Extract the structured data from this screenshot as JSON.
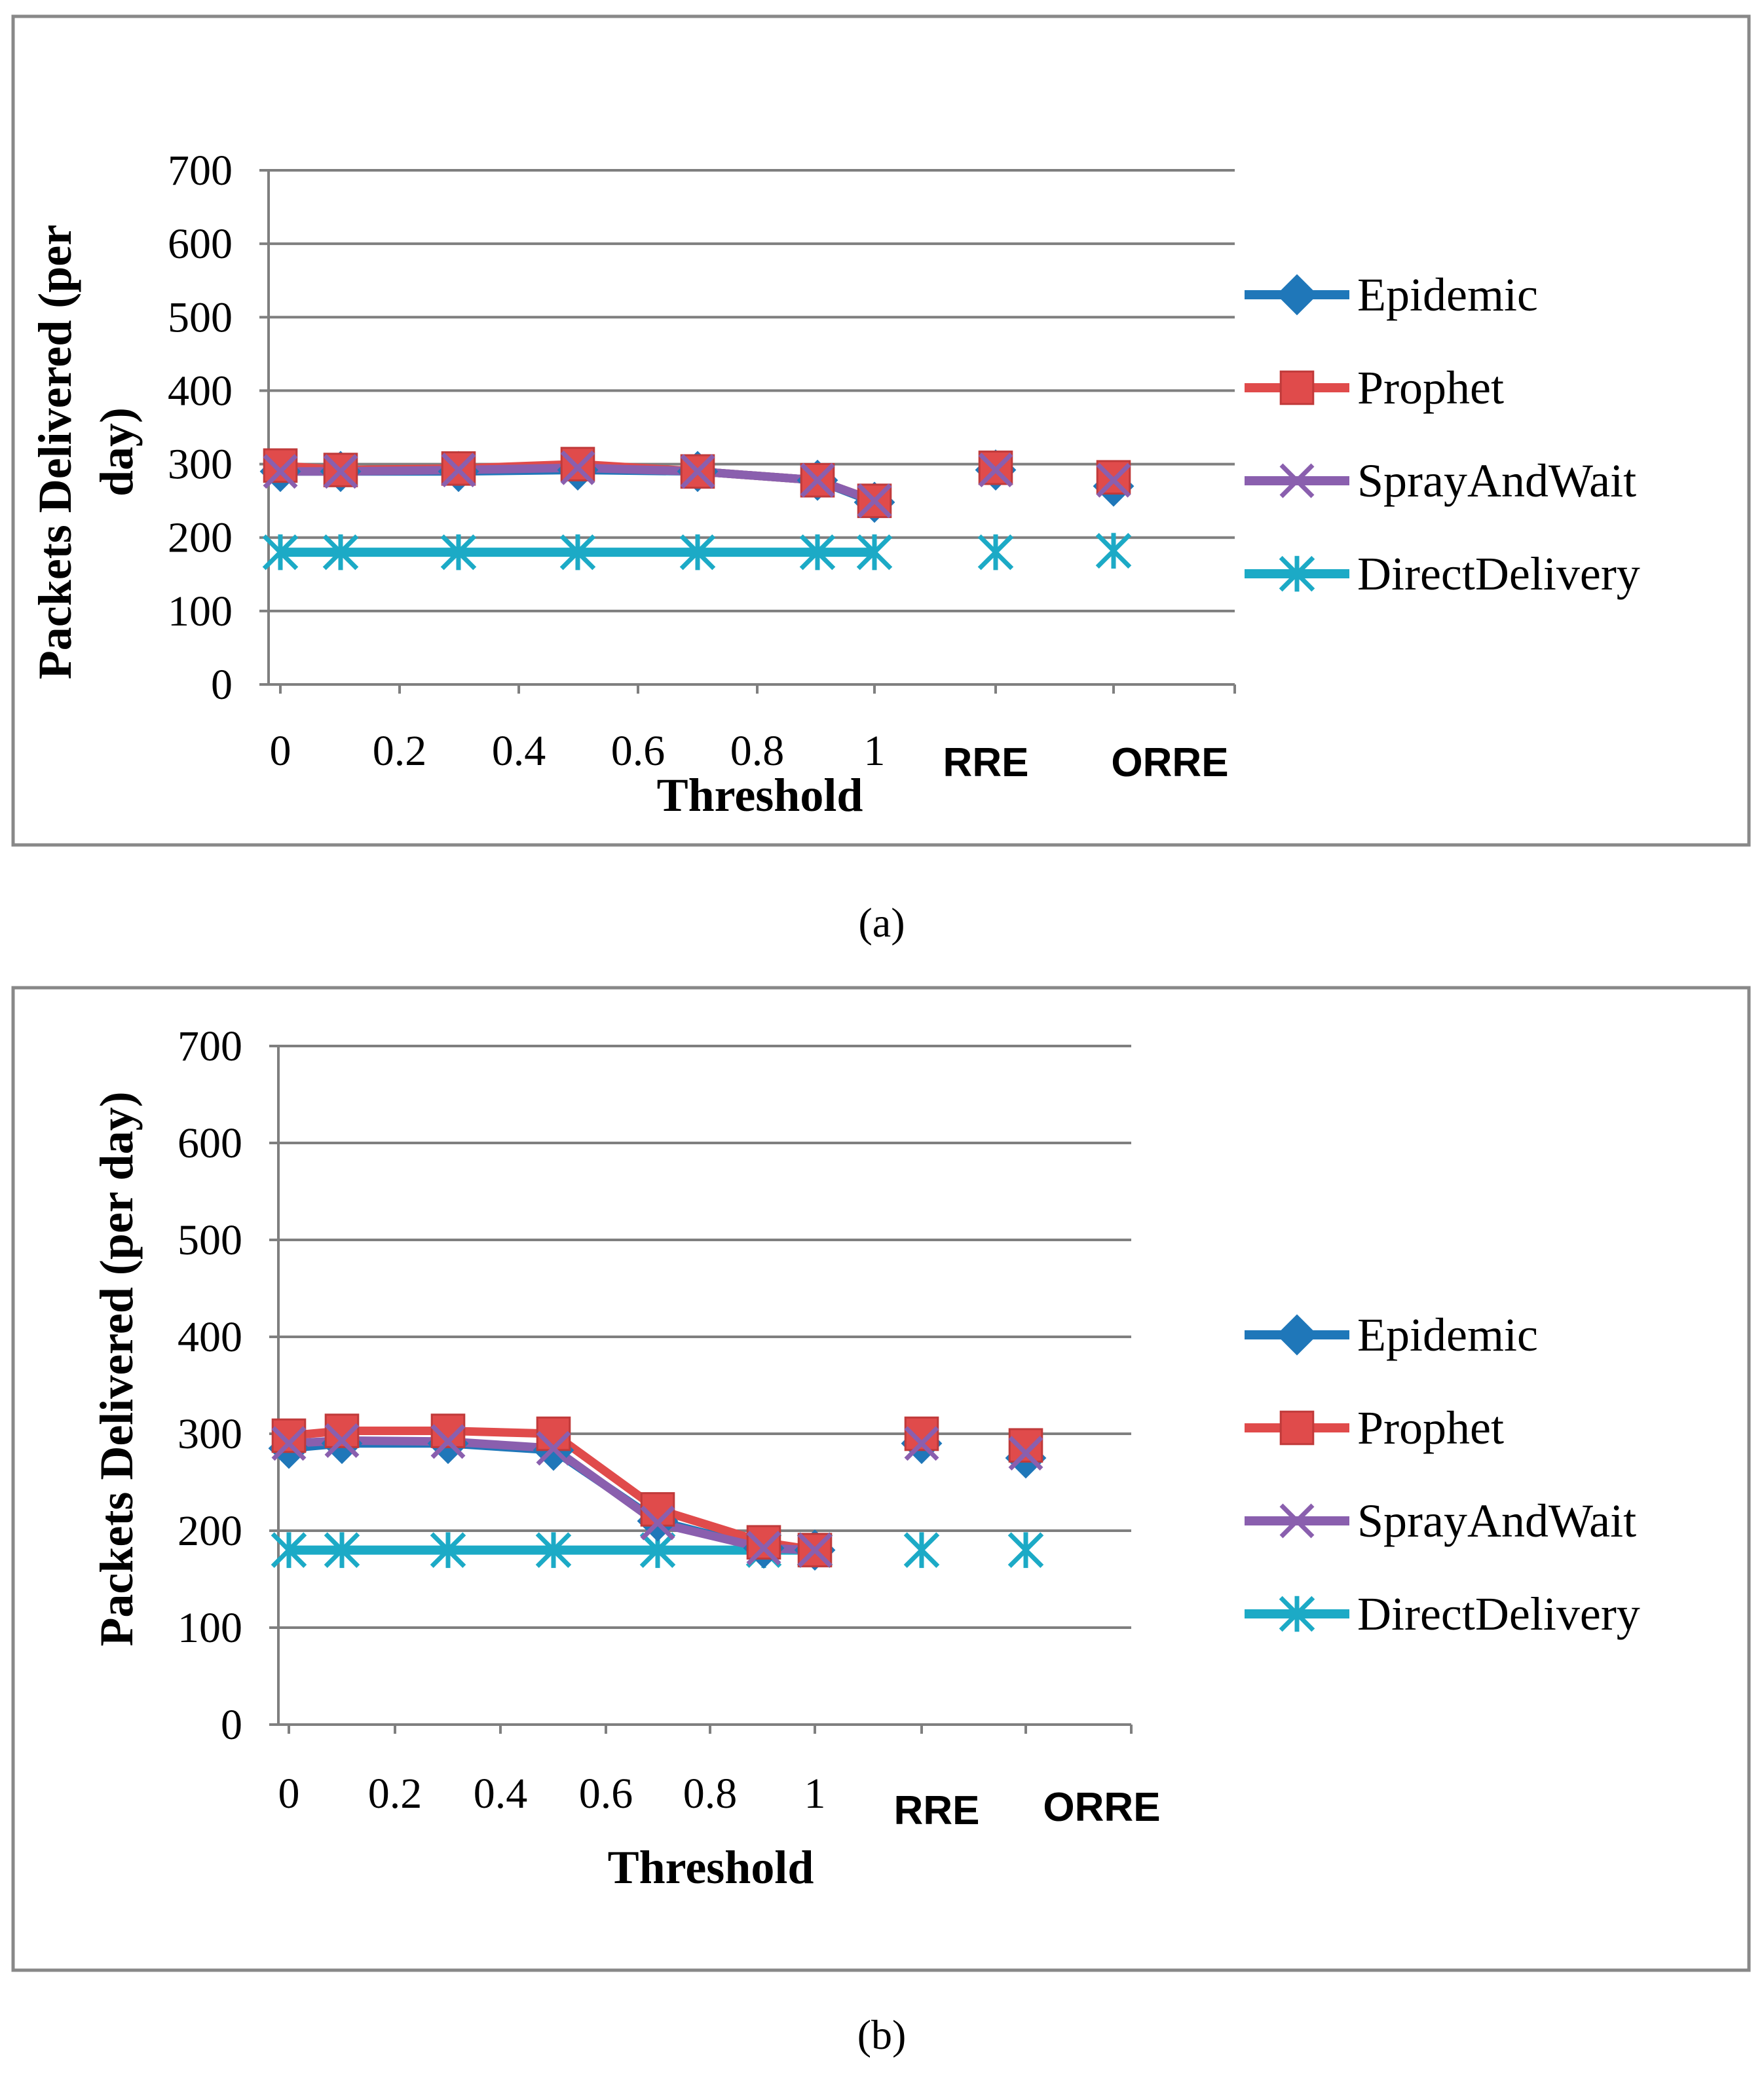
{
  "chart_data": [
    {
      "type": "line",
      "panel": "a",
      "caption": "(a)",
      "xlabel": "Threshold",
      "ylabel_lines": [
        "Packets Delivered (per",
        "day)"
      ],
      "ylim": [
        0,
        700
      ],
      "y_ticks": [
        "0",
        "100",
        "200",
        "300",
        "400",
        "500",
        "600",
        "700"
      ],
      "categories": [
        "0",
        "0.1",
        "0.3",
        "0.5",
        "0.7",
        "0.9",
        "1",
        "RRE",
        "ORRE"
      ],
      "x_tick_labels": [
        "0",
        "0.2",
        "0.4",
        "0.6",
        "0.8",
        "1",
        "RRE",
        "ORRE"
      ],
      "grid": true,
      "legend_position": "right",
      "series": [
        {
          "name": "Epidemic",
          "color": "#1F77B9",
          "marker": "diamond",
          "values": [
            290,
            290,
            290,
            292,
            290,
            278,
            248,
            292,
            270
          ]
        },
        {
          "name": "Prophet",
          "color": "#E04B4B",
          "marker": "square",
          "values": [
            298,
            292,
            294,
            300,
            290,
            278,
            250,
            295,
            282
          ]
        },
        {
          "name": "SprayAndWait",
          "color": "#8A5FAE",
          "marker": "x",
          "values": [
            290,
            290,
            292,
            295,
            290,
            278,
            250,
            292,
            278
          ]
        },
        {
          "name": "DirectDelivery",
          "color": "#1CAAC6",
          "marker": "asterisk",
          "values": [
            180,
            180,
            180,
            180,
            180,
            180,
            180,
            180,
            182
          ]
        }
      ]
    },
    {
      "type": "line",
      "panel": "b",
      "caption": "(b)",
      "xlabel": "Threshold",
      "ylabel_lines": [
        "Packets Delivered (per day)"
      ],
      "ylim": [
        0,
        700
      ],
      "y_ticks": [
        "0",
        "100",
        "200",
        "300",
        "400",
        "500",
        "600",
        "700"
      ],
      "categories": [
        "0",
        "0.1",
        "0.3",
        "0.5",
        "0.7",
        "0.9",
        "1",
        "RRE",
        "ORRE"
      ],
      "x_tick_labels": [
        "0",
        "0.2",
        "0.4",
        "0.6",
        "0.8",
        "1",
        "RRE",
        "ORRE"
      ],
      "grid": true,
      "legend_position": "right",
      "series": [
        {
          "name": "Epidemic",
          "color": "#1F77B9",
          "marker": "diamond",
          "values": [
            285,
            290,
            290,
            283,
            210,
            182,
            180,
            290,
            275
          ]
        },
        {
          "name": "Prophet",
          "color": "#E04B4B",
          "marker": "square",
          "values": [
            298,
            303,
            303,
            300,
            222,
            188,
            180,
            300,
            288
          ]
        },
        {
          "name": "SprayAndWait",
          "color": "#8A5FAE",
          "marker": "x",
          "values": [
            290,
            293,
            292,
            285,
            208,
            182,
            180,
            290,
            280
          ]
        },
        {
          "name": "DirectDelivery",
          "color": "#1CAAC6",
          "marker": "asterisk",
          "values": [
            180,
            180,
            180,
            180,
            180,
            180,
            180,
            180,
            180
          ]
        }
      ]
    }
  ]
}
